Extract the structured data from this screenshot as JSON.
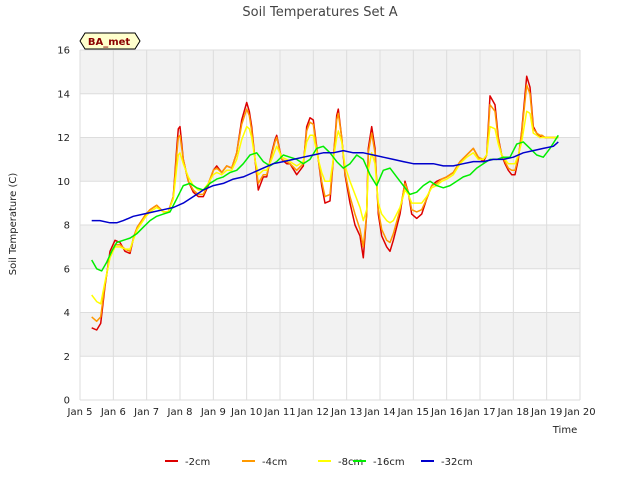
{
  "chart_data": {
    "type": "line",
    "title": "Soil Temperatures Set A",
    "xlabel": "Time",
    "ylabel": "Soil Temperature (C)",
    "xlim": [
      5,
      20
    ],
    "ylim": [
      0,
      16
    ],
    "x_ticks": [
      5,
      6,
      7,
      8,
      9,
      10,
      11,
      12,
      13,
      14,
      15,
      16,
      17,
      18,
      19,
      20
    ],
    "x_tick_labels": [
      "Jan 5",
      "Jan 6",
      "Jan 7",
      "Jan 8",
      "Jan 9",
      "Jan 10",
      "Jan 11",
      "Jan 12",
      "Jan 13",
      "Jan 14",
      "Jan 15",
      "Jan 16",
      "Jan 17",
      "Jan 18",
      "Jan 19",
      "Jan 20"
    ],
    "y_ticks": [
      0,
      2,
      4,
      6,
      8,
      10,
      12,
      14,
      16
    ],
    "y_tick_labels": [
      "0",
      "2",
      "4",
      "6",
      "8",
      "10",
      "12",
      "14",
      "16"
    ],
    "grid": true,
    "band_shading": "alternating",
    "legend_position": "bottom-center",
    "annotation": "BA_met",
    "series": [
      {
        "name": "-2cm",
        "color": "#dd0000",
        "x": [
          5.35,
          5.5,
          5.62,
          5.75,
          5.9,
          6.05,
          6.2,
          6.35,
          6.5,
          6.62,
          6.72,
          6.85,
          6.98,
          7.1,
          7.3,
          7.5,
          7.65,
          7.8,
          7.9,
          7.95,
          8.0,
          8.1,
          8.25,
          8.4,
          8.55,
          8.7,
          8.85,
          9.0,
          9.1,
          9.25,
          9.4,
          9.55,
          9.7,
          9.85,
          10.0,
          10.08,
          10.15,
          10.25,
          10.35,
          10.5,
          10.6,
          10.75,
          10.85,
          10.9,
          11.05,
          11.2,
          11.3,
          11.5,
          11.7,
          11.8,
          11.9,
          12.0,
          12.15,
          12.25,
          12.35,
          12.5,
          12.6,
          12.7,
          12.75,
          12.85,
          12.95,
          13.1,
          13.25,
          13.4,
          13.5,
          13.6,
          13.65,
          13.75,
          13.85,
          13.95,
          14.05,
          14.2,
          14.3,
          14.4,
          14.6,
          14.75,
          14.85,
          14.95,
          15.1,
          15.25,
          15.4,
          15.55,
          15.7,
          15.85,
          16.0,
          16.2,
          16.4,
          16.6,
          16.8,
          16.95,
          17.1,
          17.2,
          17.3,
          17.45,
          17.55,
          17.65,
          17.75,
          17.85,
          17.95,
          18.05,
          18.15,
          18.25,
          18.4,
          18.5,
          18.6,
          18.7,
          18.8,
          18.85,
          18.95,
          19.05,
          19.15,
          19.35
        ],
        "values": [
          3.3,
          3.2,
          3.5,
          5.2,
          6.8,
          7.3,
          7.2,
          6.8,
          6.7,
          7.5,
          7.9,
          8.2,
          8.5,
          8.7,
          8.9,
          8.6,
          8.6,
          9.3,
          11.5,
          12.4,
          12.5,
          11.0,
          10.0,
          9.5,
          9.3,
          9.3,
          9.8,
          10.5,
          10.7,
          10.4,
          10.7,
          10.6,
          11.3,
          12.8,
          13.6,
          13.2,
          12.5,
          11.0,
          9.6,
          10.2,
          10.2,
          11.3,
          11.9,
          12.1,
          11.0,
          10.8,
          10.8,
          10.3,
          10.7,
          12.5,
          12.9,
          12.8,
          11.0,
          9.8,
          9.0,
          9.1,
          11.0,
          13.0,
          13.3,
          12.0,
          10.3,
          9.0,
          8.0,
          7.5,
          6.5,
          8.5,
          11.5,
          12.5,
          11.5,
          8.5,
          7.5,
          7.0,
          6.8,
          7.3,
          8.5,
          10.0,
          9.5,
          8.5,
          8.3,
          8.5,
          9.2,
          9.8,
          10.0,
          10.1,
          10.2,
          10.4,
          10.9,
          11.2,
          11.5,
          11.1,
          10.9,
          11.2,
          13.9,
          13.5,
          12.0,
          11.2,
          10.8,
          10.5,
          10.3,
          10.3,
          11.0,
          12.3,
          14.8,
          14.3,
          12.5,
          12.2,
          12.0,
          12.1,
          12.0,
          12.0,
          12.0,
          12.0
        ]
      },
      {
        "name": "-4cm",
        "color": "#ff9900",
        "x": [
          5.35,
          5.5,
          5.62,
          5.75,
          5.9,
          6.05,
          6.2,
          6.35,
          6.5,
          6.62,
          6.72,
          6.85,
          6.98,
          7.1,
          7.3,
          7.5,
          7.65,
          7.8,
          7.9,
          7.95,
          8.0,
          8.1,
          8.25,
          8.4,
          8.55,
          8.7,
          8.85,
          9.0,
          9.1,
          9.25,
          9.4,
          9.55,
          9.7,
          9.85,
          10.0,
          10.08,
          10.15,
          10.25,
          10.35,
          10.5,
          10.6,
          10.75,
          10.85,
          10.9,
          11.05,
          11.2,
          11.3,
          11.5,
          11.7,
          11.8,
          11.9,
          12.0,
          12.15,
          12.25,
          12.35,
          12.5,
          12.6,
          12.7,
          12.75,
          12.85,
          12.95,
          13.1,
          13.25,
          13.4,
          13.5,
          13.6,
          13.65,
          13.75,
          13.85,
          13.95,
          14.05,
          14.2,
          14.3,
          14.4,
          14.6,
          14.75,
          14.85,
          14.95,
          15.1,
          15.25,
          15.4,
          15.55,
          15.7,
          15.85,
          16.0,
          16.2,
          16.4,
          16.6,
          16.8,
          16.95,
          17.1,
          17.2,
          17.3,
          17.45,
          17.55,
          17.65,
          17.75,
          17.85,
          17.95,
          18.05,
          18.15,
          18.25,
          18.4,
          18.5,
          18.6,
          18.7,
          18.8,
          18.85,
          18.95,
          19.05,
          19.15,
          19.35
        ],
        "values": [
          3.8,
          3.6,
          3.8,
          5.3,
          6.6,
          7.1,
          7.1,
          6.9,
          6.8,
          7.5,
          7.9,
          8.2,
          8.5,
          8.7,
          8.9,
          8.6,
          8.6,
          9.3,
          11.2,
          12.0,
          12.1,
          11.0,
          10.0,
          9.6,
          9.4,
          9.4,
          9.9,
          10.5,
          10.6,
          10.4,
          10.7,
          10.6,
          11.3,
          12.6,
          13.3,
          13.0,
          12.3,
          11.0,
          9.9,
          10.3,
          10.3,
          11.2,
          11.8,
          12.0,
          11.0,
          10.9,
          10.8,
          10.5,
          10.8,
          12.3,
          12.7,
          12.6,
          11.0,
          10.0,
          9.3,
          9.4,
          11.0,
          12.8,
          13.1,
          12.0,
          10.4,
          9.3,
          8.5,
          7.8,
          7.0,
          8.5,
          11.3,
          12.2,
          11.3,
          8.7,
          7.8,
          7.3,
          7.2,
          7.6,
          8.7,
          9.9,
          9.5,
          8.7,
          8.6,
          8.7,
          9.2,
          9.8,
          9.9,
          10.1,
          10.2,
          10.4,
          10.9,
          11.2,
          11.5,
          11.1,
          11.0,
          11.2,
          13.5,
          13.2,
          11.9,
          11.2,
          10.9,
          10.6,
          10.5,
          10.5,
          11.1,
          12.2,
          14.4,
          14.0,
          12.4,
          12.2,
          12.1,
          12.1,
          12.0,
          12.0,
          12.0,
          12.0
        ]
      },
      {
        "name": "-8cm",
        "color": "#ffff00",
        "x": [
          5.35,
          5.5,
          5.62,
          5.75,
          5.9,
          6.05,
          6.2,
          6.35,
          6.5,
          6.62,
          6.72,
          6.85,
          6.98,
          7.1,
          7.3,
          7.5,
          7.65,
          7.8,
          7.9,
          7.95,
          8.0,
          8.1,
          8.25,
          8.4,
          8.55,
          8.7,
          8.85,
          9.0,
          9.1,
          9.25,
          9.4,
          9.55,
          9.7,
          9.85,
          10.0,
          10.08,
          10.15,
          10.25,
          10.35,
          10.5,
          10.6,
          10.75,
          10.85,
          10.9,
          11.05,
          11.2,
          11.3,
          11.5,
          11.7,
          11.8,
          11.9,
          12.0,
          12.15,
          12.25,
          12.35,
          12.5,
          12.6,
          12.7,
          12.75,
          12.85,
          12.95,
          13.1,
          13.25,
          13.4,
          13.5,
          13.6,
          13.65,
          13.75,
          13.85,
          13.95,
          14.05,
          14.2,
          14.3,
          14.4,
          14.6,
          14.75,
          14.85,
          14.95,
          15.1,
          15.25,
          15.4,
          15.55,
          15.7,
          15.85,
          16.0,
          16.2,
          16.4,
          16.6,
          16.8,
          16.95,
          17.1,
          17.2,
          17.3,
          17.45,
          17.55,
          17.65,
          17.75,
          17.85,
          17.95,
          18.05,
          18.15,
          18.25,
          18.4,
          18.5,
          18.6,
          18.7,
          18.8,
          18.85,
          18.95,
          19.05,
          19.15,
          19.35
        ],
        "values": [
          4.8,
          4.5,
          4.4,
          5.4,
          6.5,
          7.0,
          7.0,
          6.9,
          6.9,
          7.4,
          7.8,
          8.1,
          8.4,
          8.6,
          8.8,
          8.6,
          8.6,
          9.2,
          10.6,
          11.2,
          11.3,
          10.8,
          10.2,
          9.8,
          9.6,
          9.6,
          9.9,
          10.3,
          10.4,
          10.3,
          10.5,
          10.5,
          11.0,
          11.9,
          12.5,
          12.4,
          12.0,
          11.0,
          10.3,
          10.5,
          10.5,
          11.0,
          11.4,
          11.6,
          11.1,
          11.0,
          10.9,
          10.7,
          10.9,
          11.8,
          12.1,
          12.1,
          11.0,
          10.4,
          10.0,
          10.0,
          11.0,
          12.0,
          12.3,
          11.8,
          10.7,
          10.0,
          9.4,
          8.8,
          8.2,
          8.7,
          10.5,
          11.3,
          10.8,
          9.0,
          8.5,
          8.2,
          8.1,
          8.2,
          8.8,
          9.6,
          9.4,
          9.0,
          9.0,
          9.0,
          9.3,
          9.7,
          9.8,
          10.0,
          10.1,
          10.3,
          10.8,
          11.1,
          11.3,
          11.0,
          11.0,
          11.2,
          12.5,
          12.4,
          11.7,
          11.2,
          11.0,
          10.8,
          10.8,
          10.8,
          11.2,
          11.8,
          13.2,
          13.1,
          12.2,
          12.1,
          12.0,
          12.0,
          12.0,
          12.0,
          12.0,
          12.0
        ]
      },
      {
        "name": "-16cm",
        "color": "#00ee00",
        "x": [
          5.35,
          5.5,
          5.65,
          5.8,
          5.95,
          6.1,
          6.3,
          6.5,
          6.7,
          6.9,
          7.1,
          7.3,
          7.5,
          7.7,
          7.9,
          8.1,
          8.3,
          8.5,
          8.7,
          8.9,
          9.1,
          9.3,
          9.5,
          9.7,
          9.9,
          10.1,
          10.3,
          10.5,
          10.7,
          10.9,
          11.1,
          11.3,
          11.5,
          11.7,
          11.9,
          12.1,
          12.3,
          12.5,
          12.7,
          12.9,
          13.1,
          13.3,
          13.5,
          13.7,
          13.9,
          14.1,
          14.3,
          14.5,
          14.7,
          14.9,
          15.1,
          15.3,
          15.5,
          15.7,
          15.9,
          16.1,
          16.3,
          16.5,
          16.7,
          16.9,
          17.1,
          17.3,
          17.5,
          17.7,
          17.9,
          18.1,
          18.3,
          18.5,
          18.7,
          18.9,
          19.1,
          19.35
        ],
        "values": [
          6.4,
          6.0,
          5.9,
          6.3,
          6.8,
          7.2,
          7.3,
          7.4,
          7.6,
          7.9,
          8.2,
          8.4,
          8.5,
          8.6,
          9.2,
          9.8,
          9.9,
          9.7,
          9.6,
          9.9,
          10.1,
          10.2,
          10.4,
          10.5,
          10.8,
          11.2,
          11.3,
          10.9,
          10.7,
          10.9,
          11.2,
          11.1,
          11.0,
          10.8,
          11.0,
          11.5,
          11.6,
          11.3,
          10.9,
          10.6,
          10.8,
          11.2,
          11.0,
          10.3,
          9.8,
          10.5,
          10.6,
          10.2,
          9.8,
          9.4,
          9.5,
          9.8,
          10.0,
          9.8,
          9.7,
          9.8,
          10.0,
          10.2,
          10.3,
          10.6,
          10.8,
          11.0,
          11.0,
          11.1,
          11.1,
          11.7,
          11.8,
          11.5,
          11.2,
          11.1,
          11.5,
          12.1
        ]
      },
      {
        "name": "-32cm",
        "color": "#0000cc",
        "x": [
          5.35,
          5.6,
          5.9,
          6.1,
          6.3,
          6.6,
          6.9,
          7.2,
          7.5,
          7.8,
          8.1,
          8.4,
          8.7,
          9.0,
          9.3,
          9.6,
          9.9,
          10.2,
          10.5,
          10.8,
          11.1,
          11.4,
          11.7,
          12.0,
          12.3,
          12.6,
          12.9,
          13.2,
          13.5,
          13.8,
          14.1,
          14.4,
          14.7,
          15.0,
          15.3,
          15.6,
          15.9,
          16.2,
          16.5,
          16.8,
          17.1,
          17.4,
          17.7,
          18.0,
          18.3,
          18.6,
          18.9,
          19.2,
          19.35
        ],
        "values": [
          8.2,
          8.2,
          8.1,
          8.1,
          8.2,
          8.4,
          8.5,
          8.6,
          8.7,
          8.8,
          9.0,
          9.3,
          9.6,
          9.8,
          9.9,
          10.1,
          10.2,
          10.4,
          10.6,
          10.8,
          10.9,
          11.0,
          11.1,
          11.2,
          11.3,
          11.3,
          11.4,
          11.3,
          11.3,
          11.2,
          11.1,
          11.0,
          10.9,
          10.8,
          10.8,
          10.8,
          10.7,
          10.7,
          10.8,
          10.9,
          10.9,
          11.0,
          11.0,
          11.1,
          11.3,
          11.4,
          11.5,
          11.6,
          11.8
        ]
      }
    ]
  }
}
